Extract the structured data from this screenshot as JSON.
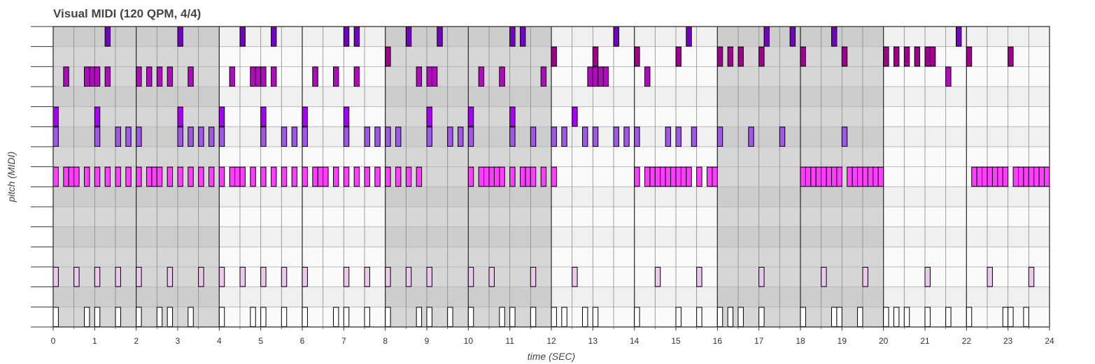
{
  "chart_data": {
    "type": "piano-roll",
    "title": "Visual MIDI (120 QPM, 4/4)",
    "xlabel": "time (SEC)",
    "ylabel": "pitch (MIDI)",
    "xlim": [
      0,
      24
    ],
    "x_ticks": [
      0,
      1,
      2,
      3,
      4,
      5,
      6,
      7,
      8,
      9,
      10,
      11,
      12,
      13,
      14,
      15,
      16,
      17,
      18,
      19,
      20,
      21,
      22,
      23,
      24
    ],
    "tempo_qpm": 120,
    "time_signature": "4/4",
    "beat_seconds": 0.5,
    "bar_seconds": 2,
    "pitch_rows": 15,
    "bar_shading": [
      "dark",
      "dark",
      "light",
      "light",
      "dark",
      "dark",
      "light",
      "light",
      "dark",
      "dark",
      "light",
      "light"
    ],
    "row_shading": [
      "white",
      "light",
      "white",
      "white",
      "light",
      "white",
      "light",
      "white",
      "white",
      "light",
      "white",
      "light",
      "white",
      "white",
      "light"
    ],
    "shade_colors": {
      "white": "#fafafa",
      "light": "#f0f0f0",
      "dark": "#d6d6d6",
      "dark_stripe": "#cdcdcd"
    },
    "track_colors": {
      "0": "#ffffff",
      "2": "#ebc8ec",
      "7": "#ff3dff",
      "9": "#a056e6",
      "10": "#a800f6",
      "12": "#b00bbd",
      "13": "#a1008e",
      "14": "#7400c4"
    },
    "notes": {
      "0": [
        0,
        0.75,
        1,
        1.5,
        2,
        2.5,
        2.75,
        3.25,
        4,
        4.75,
        5,
        5.5,
        6,
        6.75,
        7,
        7.5,
        8,
        8.75,
        9,
        9.5,
        10,
        10.75,
        11,
        11.5,
        12,
        12.25,
        12.75,
        13,
        14,
        15,
        15.5,
        16,
        16.25,
        16.5,
        17,
        18,
        18.75,
        18.875,
        19.375,
        20,
        20.25,
        20.5,
        21,
        21.5,
        22,
        22.875,
        23,
        23.375
      ],
      "2": [
        0,
        0.5,
        1,
        1.5,
        2,
        2.75,
        3.5,
        4,
        4.5,
        5,
        5.5,
        6,
        7,
        7.5,
        8,
        8.5,
        9,
        10,
        10.5,
        11.5,
        12.5,
        14.5,
        15.5,
        17,
        18.5,
        19.5,
        21,
        22.5,
        23.5
      ],
      "7": [
        0,
        0.25,
        0.375,
        0.5,
        0.75,
        1,
        1.25,
        1.5,
        1.75,
        2,
        2.25,
        2.375,
        2.5,
        2.75,
        3,
        3.25,
        3.5,
        3.75,
        4,
        4.25,
        4.375,
        4.5,
        4.75,
        5,
        5.25,
        5.5,
        5.75,
        6,
        6.25,
        6.375,
        6.5,
        6.75,
        7,
        7.25,
        7.5,
        7.75,
        8,
        8.25,
        8.5,
        8.75,
        10,
        10.25,
        10.375,
        10.5,
        10.625,
        10.75,
        11,
        11.25,
        11.375,
        11.5,
        11.75,
        12,
        14,
        14.25,
        14.375,
        14.5,
        14.625,
        14.75,
        14.875,
        15,
        15.125,
        15.25,
        15.5,
        15.75,
        15.875,
        18,
        18.125,
        18.25,
        18.375,
        18.5,
        18.625,
        18.75,
        18.875,
        19.125,
        19.25,
        19.375,
        19.5,
        19.625,
        19.75,
        19.875,
        22.125,
        22.25,
        22.375,
        22.5,
        22.625,
        22.75,
        22.875,
        23.125,
        23.25,
        23.375,
        23.5,
        23.625,
        23.75,
        23.875
      ],
      "9": [
        0,
        1,
        1.5,
        1.75,
        2,
        3,
        3.25,
        3.5,
        3.75,
        4,
        5,
        5.5,
        5.75,
        6,
        7,
        7.5,
        7.75,
        8,
        8.25,
        9,
        9.5,
        9.75,
        10,
        11,
        11.5,
        12,
        12.25,
        12.75,
        13,
        13.5,
        13.75,
        14,
        14.75,
        15,
        15.375,
        16,
        16.75,
        17.5,
        19
      ],
      "10": [
        0,
        1,
        3,
        4,
        5,
        6,
        7,
        9,
        10,
        11,
        12.5
      ],
      "12": [
        0.25,
        0.75,
        0.875,
        1,
        1.25,
        2,
        2.25,
        2.5,
        2.75,
        3.25,
        4.25,
        4.75,
        4.875,
        5,
        5.25,
        6.25,
        6.75,
        7.25,
        8.75,
        9,
        9.125,
        10.25,
        10.75,
        11.75,
        12.875,
        13,
        13.125,
        13.25,
        14.25,
        21.5
      ],
      "13": [
        8,
        12,
        13,
        14,
        15,
        16,
        16.25,
        16.5,
        17,
        18,
        19,
        20,
        20.25,
        20.5,
        20.75,
        21,
        21.125,
        22,
        23
      ],
      "14": [
        1.25,
        3,
        4.5,
        5.25,
        7,
        7.25,
        8.5,
        9.25,
        11,
        11.25,
        13.5,
        15.25,
        17.125,
        17.75,
        18.75,
        21.75
      ]
    }
  }
}
